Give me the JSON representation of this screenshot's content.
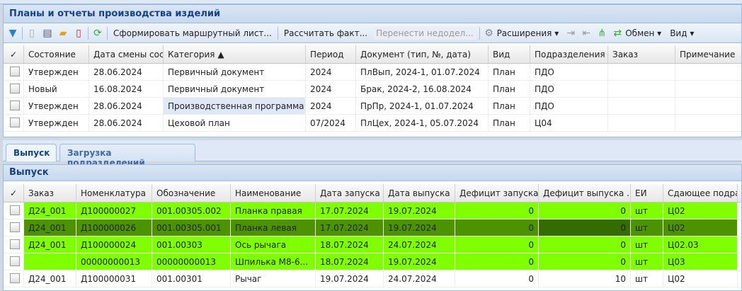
{
  "panel_title": "Планы и отчеты производства изделий",
  "toolbar": {
    "form_route": "Сформировать маршрутный лист...",
    "calc_fact": "Рассчитать факт...",
    "move_unfinished": "Перенести недодел...",
    "extensions": "Расширения ▾",
    "exchange": "Обмен ▾",
    "view": "Вид ▾"
  },
  "top_grid": {
    "headers": [
      "✓",
      "Состояние",
      "Дата смены сост",
      "Категория ▲",
      "Период",
      "Документ (тип, №, дата)",
      "Вид",
      "Подразделения",
      "Заказ",
      "Примечание"
    ],
    "rows": [
      [
        "Утвержден",
        "28.06.2024",
        "Первичный документ",
        "2024",
        "ПлВып, 2024-1, 01.07.2024",
        "План",
        "ПДО",
        "",
        ""
      ],
      [
        "Новый",
        "16.08.2024",
        "Первичный документ",
        "2024",
        "Брак, 2024-2, 16.08.2024",
        "План",
        "ПДО",
        "",
        ""
      ],
      [
        "Утвержден",
        "28.06.2024",
        "Производственная программа",
        "2024",
        "ПрПр, 2024-1, 01.07.2024",
        "План",
        "ПДО",
        "",
        ""
      ],
      [
        "Утвержден",
        "28.06.2024",
        "Цеховой план",
        "07/2024",
        "ПлЦех, 2024-1, 05.07.2024",
        "План",
        "Ц04",
        "",
        ""
      ]
    ]
  },
  "tabs": [
    "Выпуск",
    "Загрузка подразделений"
  ],
  "sub_title": "Выпуск",
  "bottom_grid": {
    "headers": [
      "✓",
      "Заказ",
      "Номенклатура",
      "Обозначение",
      "Наименование",
      "Дата запуска ▲",
      "Дата выпуска",
      "Дефицит запуска",
      "Дефицит выпуска ..",
      "ЕИ",
      "Сдающее подраз"
    ],
    "rows": [
      [
        "Д24_001",
        "Д100000027",
        "001.00305.002",
        "Планка правая",
        "17.07.2024",
        "19.07.2024",
        "0",
        "0",
        "шт",
        "Ц02"
      ],
      [
        "Д24_001",
        "Д100000026",
        "001.00305.001",
        "Планка левая",
        "17.07.2024",
        "19.07.2024",
        "0",
        "0",
        "шт",
        "Ц02"
      ],
      [
        "Д24_001",
        "Д100000024",
        "001.00303",
        "Ось рычага",
        "18.07.2024",
        "24.07.2024",
        "0",
        "0",
        "шт",
        "Ц02.03"
      ],
      [
        "",
        "00000000013",
        "00000000013",
        "Шпилька М8-6...",
        "18.07.2024",
        "19.07.2024",
        "0",
        "0",
        "шт",
        "Ц03"
      ],
      [
        "Д24_001",
        "Д100000031",
        "001.00301",
        "Рычаг",
        "19.07.2024",
        "24.07.2024",
        "0",
        "10",
        "шт",
        "Ц02"
      ]
    ]
  },
  "colors": {
    "highlight_green": "#80ff00",
    "selected_green": "#4d9300",
    "header_blue": "#15428b"
  }
}
